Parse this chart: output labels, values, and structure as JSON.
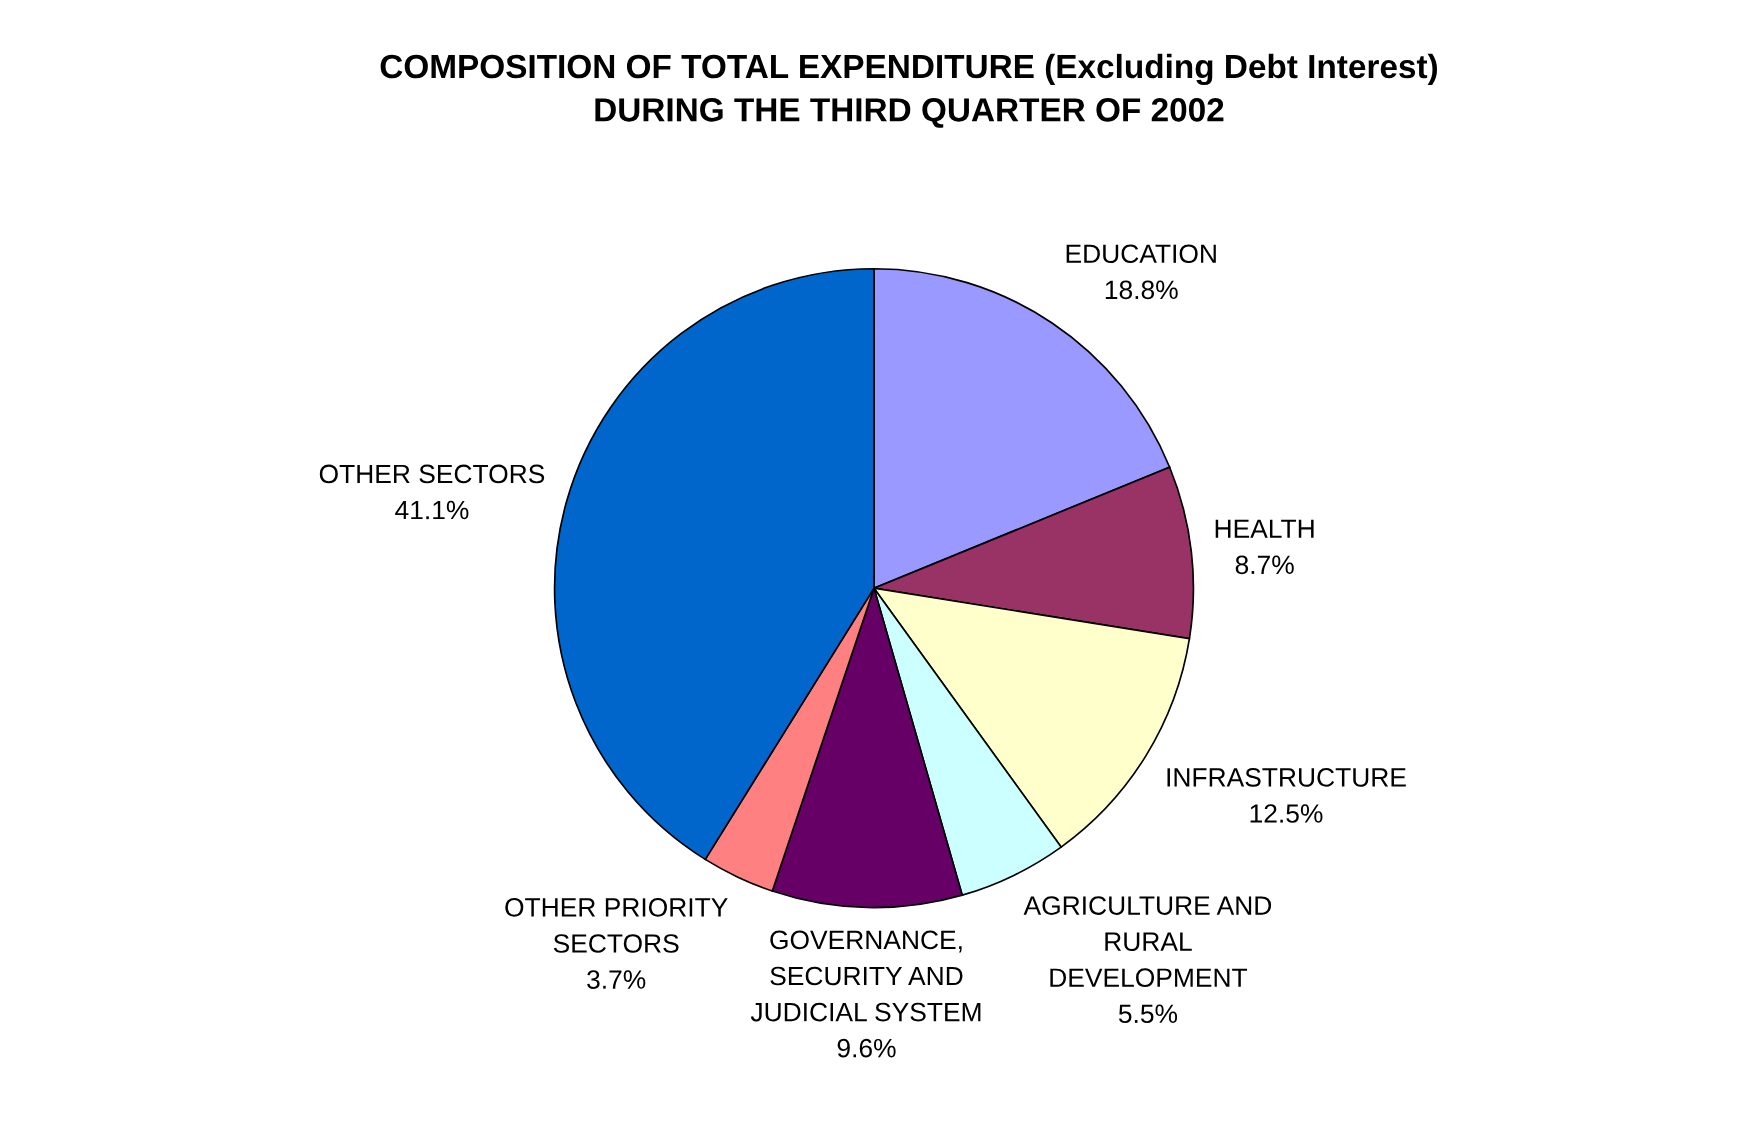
{
  "chart_data": {
    "type": "pie",
    "title": "COMPOSITION OF TOTAL EXPENDITURE (Excluding Debt Interest)\nDURING THE THIRD QUARTER OF 2002",
    "categories": [
      "EDUCATION",
      "HEALTH",
      "INFRASTRUCTURE",
      "AGRICULTURE AND\nRURAL\nDEVELOPMENT",
      "GOVERNANCE,\nSECURITY AND\nJUDICIAL SYSTEM",
      "OTHER PRIORITY\nSECTORS",
      "OTHER SECTORS"
    ],
    "values": [
      18.8,
      8.7,
      12.5,
      5.5,
      9.6,
      3.7,
      41.1
    ],
    "colors": [
      "#9999ff",
      "#993366",
      "#ffffcc",
      "#ccffff",
      "#660066",
      "#ff8080",
      "#0066cc"
    ],
    "value_labels": [
      "18.8%",
      "8.7%",
      "12.5%",
      "5.5%",
      "9.6%",
      "3.7%",
      "41.1%"
    ],
    "legend": false
  }
}
